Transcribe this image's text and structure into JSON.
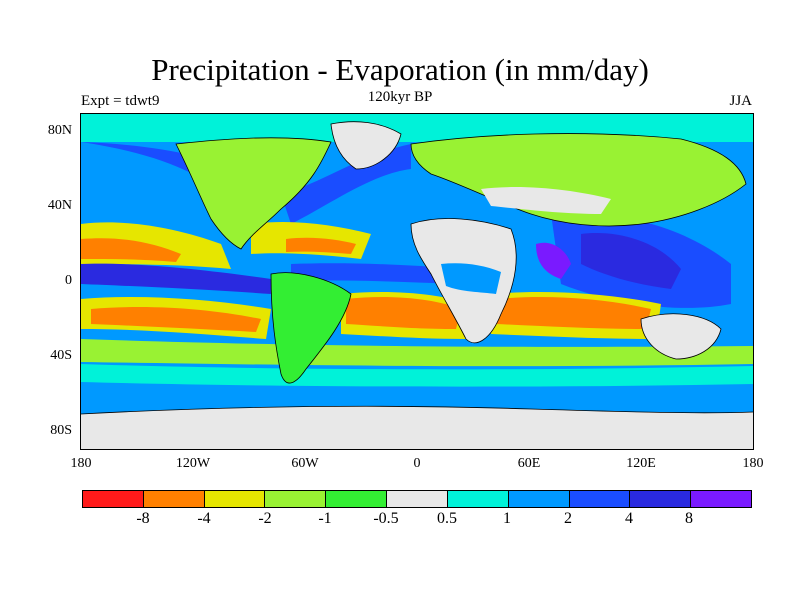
{
  "title": "Precipitation - Evaporation (in mm/day)",
  "subtitle": "120kyr BP",
  "experiment_label": "Expt = tdwt9",
  "season_label": "JJA",
  "lat_labels": [
    "80N",
    "40N",
    "0",
    "40S",
    "80S"
  ],
  "lon_labels": [
    "180",
    "120W",
    "60W",
    "0",
    "60E",
    "120E",
    "180"
  ],
  "colorbar": {
    "colors": [
      "#ff1a1a",
      "#ff8000",
      "#e6e600",
      "#99f233",
      "#33ee33",
      "#e8e8e8",
      "#00f2d9",
      "#0099ff",
      "#1a4dff",
      "#2a2ae0",
      "#7a1aff"
    ],
    "labels": [
      "-8",
      "-4",
      "-2",
      "-1",
      "-0.5",
      "0.5",
      "1",
      "2",
      "4",
      "8"
    ]
  },
  "map_colors": {
    "ocean_wet_high": "#00f2d9",
    "neutral": "#e8e8e8",
    "dry_strong": "#ff8000",
    "dry_mid": "#e6e600",
    "dry_low": "#99f233",
    "wet_mid": "#0099ff",
    "wet_strong": "#1a4dff",
    "wet_very": "#7a1aff"
  }
}
